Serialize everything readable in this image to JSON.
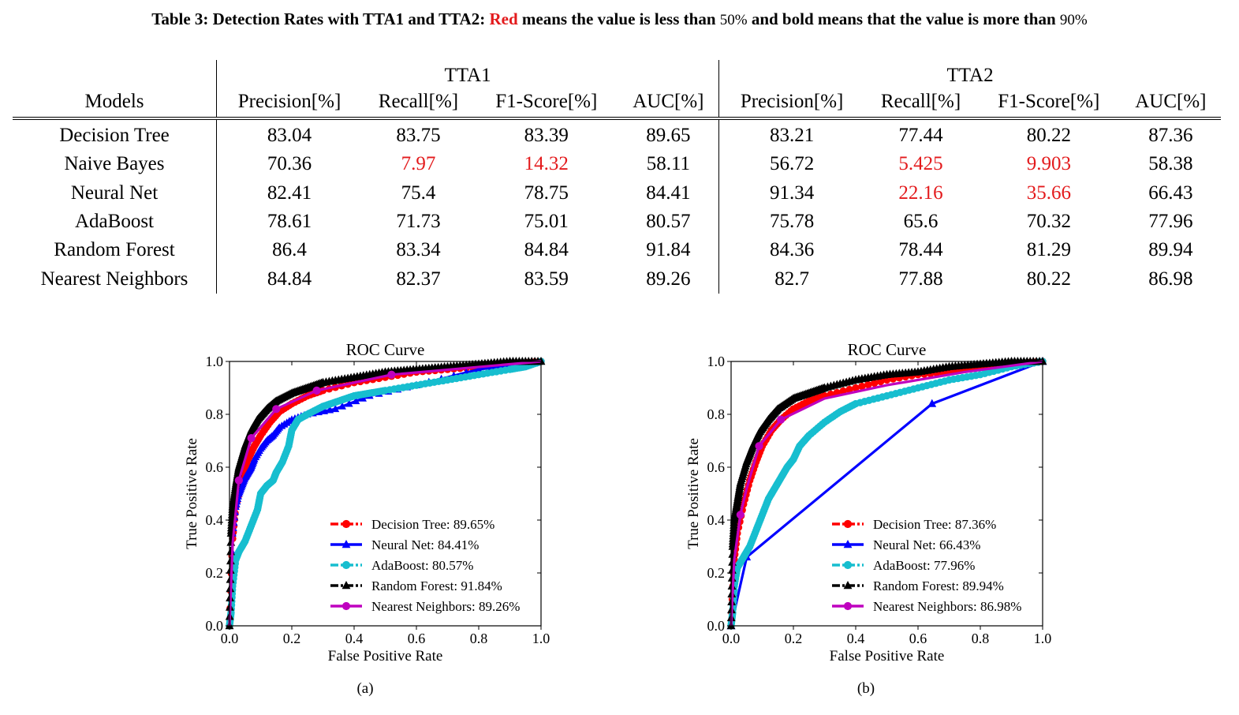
{
  "caption": {
    "lead": "Table 3: Detection Rates with TTA1 and TTA2:",
    "red_word": "Red",
    "middle": "means the value is less than",
    "threshold_low": "50%",
    "middle2": "and bold means that the value is more than",
    "threshold_high": "90%"
  },
  "table": {
    "models_header": "Models",
    "group1": "TTA1",
    "group2": "TTA2",
    "columns": [
      "Precision[%]",
      "Recall[%]",
      "F1-Score[%]",
      "AUC[%]",
      "Precision[%]",
      "Recall[%]",
      "F1-Score[%]",
      "AUC[%]"
    ],
    "rows": [
      {
        "model": "Decision Tree",
        "cells": [
          {
            "v": "83.04"
          },
          {
            "v": "83.75"
          },
          {
            "v": "83.39"
          },
          {
            "v": "89.65"
          },
          {
            "v": "83.21"
          },
          {
            "v": "77.44"
          },
          {
            "v": "80.22"
          },
          {
            "v": "87.36"
          }
        ]
      },
      {
        "model": "Naive Bayes",
        "cells": [
          {
            "v": "70.36"
          },
          {
            "v": "7.97",
            "s": "red"
          },
          {
            "v": "14.32",
            "s": "red"
          },
          {
            "v": "58.11"
          },
          {
            "v": "56.72"
          },
          {
            "v": "5.425",
            "s": "red"
          },
          {
            "v": "9.903",
            "s": "red"
          },
          {
            "v": "58.38"
          }
        ]
      },
      {
        "model": "Neural Net",
        "cells": [
          {
            "v": "82.41"
          },
          {
            "v": "75.4"
          },
          {
            "v": "78.75"
          },
          {
            "v": "84.41"
          },
          {
            "v": "91.34",
            "s": "bold"
          },
          {
            "v": "22.16",
            "s": "red"
          },
          {
            "v": "35.66",
            "s": "red"
          },
          {
            "v": "66.43"
          }
        ]
      },
      {
        "model": "AdaBoost",
        "cells": [
          {
            "v": "78.61"
          },
          {
            "v": "71.73"
          },
          {
            "v": "75.01"
          },
          {
            "v": "80.57"
          },
          {
            "v": "75.78"
          },
          {
            "v": "65.6"
          },
          {
            "v": "70.32"
          },
          {
            "v": "77.96"
          }
        ]
      },
      {
        "model": "Random Forest",
        "cells": [
          {
            "v": "86.4"
          },
          {
            "v": "83.34"
          },
          {
            "v": "84.84"
          },
          {
            "v": "91.84",
            "s": "bold"
          },
          {
            "v": "84.36"
          },
          {
            "v": "78.44"
          },
          {
            "v": "81.29"
          },
          {
            "v": "89.94"
          }
        ]
      },
      {
        "model": "Nearest Neighbors",
        "cells": [
          {
            "v": "84.84"
          },
          {
            "v": "82.37"
          },
          {
            "v": "83.59"
          },
          {
            "v": "89.26"
          },
          {
            "v": "82.7"
          },
          {
            "v": "77.88"
          },
          {
            "v": "80.22"
          },
          {
            "v": "86.98"
          }
        ]
      }
    ]
  },
  "colors": {
    "red_text": "#e31a1c",
    "decision_tree": "#ff0000",
    "neural_net": "#0000ff",
    "adaboost": "#17becf",
    "random_forest": "#000000",
    "nearest_neighbors": "#bf00bf"
  },
  "chart_data": [
    {
      "type": "line",
      "panel_label": "(a)",
      "title": "ROC Curve",
      "xlabel": "False Positive Rate",
      "ylabel": "True Positive Rate",
      "xlim": [
        0.0,
        1.0
      ],
      "ylim": [
        0.0,
        1.0
      ],
      "xticks": [
        "0.0",
        "0.2",
        "0.4",
        "0.6",
        "0.8",
        "1.0"
      ],
      "yticks": [
        "0.0",
        "0.2",
        "0.4",
        "0.6",
        "0.8",
        "1.0"
      ],
      "legend_position": "lower-right",
      "series": [
        {
          "name": "Decision Tree: 89.65%",
          "key": "decision_tree",
          "marker": "circle",
          "style": "dashdot",
          "x": [
            0,
            0.01,
            0.02,
            0.04,
            0.06,
            0.08,
            0.1,
            0.13,
            0.16,
            0.2,
            0.25,
            0.3,
            0.4,
            0.5,
            0.6,
            0.7,
            0.8,
            0.9,
            1.0
          ],
          "y": [
            0,
            0.33,
            0.45,
            0.55,
            0.63,
            0.68,
            0.72,
            0.77,
            0.81,
            0.84,
            0.87,
            0.89,
            0.92,
            0.94,
            0.96,
            0.97,
            0.98,
            0.99,
            1.0
          ]
        },
        {
          "name": "Neural Net: 84.41%",
          "key": "neural_net",
          "marker": "triangle",
          "style": "solid",
          "x": [
            0,
            0.01,
            0.02,
            0.03,
            0.04,
            0.05,
            0.06,
            0.07,
            0.08,
            0.1,
            0.12,
            0.14,
            0.16,
            0.2,
            0.25,
            0.34,
            0.45,
            0.6,
            0.8,
            1.0
          ],
          "y": [
            0,
            0.35,
            0.45,
            0.5,
            0.53,
            0.56,
            0.58,
            0.6,
            0.63,
            0.67,
            0.7,
            0.72,
            0.75,
            0.78,
            0.8,
            0.82,
            0.87,
            0.91,
            0.97,
            1.0
          ]
        },
        {
          "name": "AdaBoost: 80.57%",
          "key": "adaboost",
          "marker": "circle",
          "style": "dashdot",
          "x": [
            0,
            0.005,
            0.01,
            0.02,
            0.03,
            0.05,
            0.07,
            0.09,
            0.1,
            0.12,
            0.14,
            0.15,
            0.17,
            0.19,
            0.2,
            0.22,
            0.25,
            0.3,
            0.35,
            0.4,
            0.45,
            0.5,
            0.6,
            0.7,
            0.8,
            0.9,
            0.95,
            1.0
          ],
          "y": [
            0,
            0.05,
            0.15,
            0.25,
            0.28,
            0.32,
            0.38,
            0.44,
            0.5,
            0.53,
            0.55,
            0.58,
            0.62,
            0.68,
            0.74,
            0.78,
            0.8,
            0.83,
            0.85,
            0.87,
            0.88,
            0.89,
            0.91,
            0.93,
            0.95,
            0.97,
            0.98,
            1.0
          ]
        },
        {
          "name": "Random Forest: 91.84%",
          "key": "random_forest",
          "marker": "triangle",
          "style": "dashdot",
          "x": [
            0,
            0.005,
            0.01,
            0.02,
            0.03,
            0.05,
            0.07,
            0.09,
            0.12,
            0.15,
            0.2,
            0.25,
            0.3,
            0.4,
            0.5,
            0.6,
            0.7,
            0.8,
            0.9,
            1.0
          ],
          "y": [
            0,
            0.35,
            0.45,
            0.53,
            0.6,
            0.68,
            0.74,
            0.78,
            0.82,
            0.85,
            0.88,
            0.9,
            0.92,
            0.94,
            0.96,
            0.97,
            0.98,
            0.99,
            1.0,
            1.0
          ]
        },
        {
          "name": "Nearest Neighbors: 89.26%",
          "key": "nearest_neighbors",
          "marker": "circle",
          "style": "solid",
          "x": [
            0,
            0.01,
            0.03,
            0.07,
            0.15,
            0.28,
            0.52,
            1.0
          ],
          "y": [
            0,
            0.31,
            0.55,
            0.71,
            0.82,
            0.89,
            0.95,
            1.0
          ],
          "marker_idx": [
            2,
            3,
            4,
            5,
            6
          ]
        }
      ]
    },
    {
      "type": "line",
      "panel_label": "(b)",
      "title": "ROC Curve",
      "xlabel": "False Positive Rate",
      "ylabel": "True Positive Rate",
      "xlim": [
        0.0,
        1.0
      ],
      "ylim": [
        0.0,
        1.0
      ],
      "xticks": [
        "0.0",
        "0.2",
        "0.4",
        "0.6",
        "0.8",
        "1.0"
      ],
      "yticks": [
        "0.0",
        "0.2",
        "0.4",
        "0.6",
        "0.8",
        "1.0"
      ],
      "legend_position": "lower-right",
      "series": [
        {
          "name": "Decision Tree: 87.36%",
          "key": "decision_tree",
          "marker": "circle",
          "style": "dashdot",
          "x": [
            0,
            0.01,
            0.02,
            0.04,
            0.06,
            0.08,
            0.1,
            0.13,
            0.16,
            0.2,
            0.25,
            0.3,
            0.4,
            0.5,
            0.6,
            0.7,
            0.8,
            0.9,
            1.0
          ],
          "y": [
            0,
            0.25,
            0.35,
            0.46,
            0.55,
            0.62,
            0.68,
            0.74,
            0.78,
            0.82,
            0.85,
            0.87,
            0.9,
            0.93,
            0.95,
            0.96,
            0.98,
            0.99,
            1.0
          ]
        },
        {
          "name": "Neural Net: 66.43%",
          "key": "neural_net",
          "marker": "triangle",
          "style": "solid",
          "x": [
            0,
            0.05,
            0.645,
            1.0
          ],
          "y": [
            0,
            0.26,
            0.84,
            1.0
          ]
        },
        {
          "name": "AdaBoost: 77.96%",
          "key": "adaboost",
          "marker": "circle",
          "style": "dashdot",
          "x": [
            0,
            0.005,
            0.01,
            0.02,
            0.04,
            0.06,
            0.08,
            0.1,
            0.12,
            0.14,
            0.16,
            0.18,
            0.2,
            0.22,
            0.25,
            0.3,
            0.35,
            0.4,
            0.5,
            0.6,
            0.7,
            0.8,
            0.9,
            1.0
          ],
          "y": [
            0,
            0.05,
            0.15,
            0.22,
            0.26,
            0.3,
            0.36,
            0.42,
            0.48,
            0.52,
            0.56,
            0.6,
            0.63,
            0.68,
            0.72,
            0.77,
            0.81,
            0.84,
            0.87,
            0.9,
            0.93,
            0.95,
            0.98,
            1.0
          ]
        },
        {
          "name": "Random Forest: 89.94%",
          "key": "random_forest",
          "marker": "triangle",
          "style": "dashdot",
          "x": [
            0,
            0.005,
            0.01,
            0.02,
            0.03,
            0.05,
            0.07,
            0.09,
            0.12,
            0.15,
            0.2,
            0.25,
            0.3,
            0.4,
            0.5,
            0.6,
            0.7,
            0.8,
            0.9,
            1.0
          ],
          "y": [
            0,
            0.3,
            0.4,
            0.47,
            0.54,
            0.62,
            0.68,
            0.73,
            0.78,
            0.82,
            0.86,
            0.88,
            0.9,
            0.93,
            0.95,
            0.96,
            0.98,
            0.99,
            1.0,
            1.0
          ]
        },
        {
          "name": "Nearest Neighbors: 86.98%",
          "key": "nearest_neighbors",
          "marker": "circle",
          "style": "solid",
          "x": [
            0,
            0.01,
            0.03,
            0.05,
            0.09,
            0.16,
            0.3,
            0.5,
            0.75,
            1.0
          ],
          "y": [
            0,
            0.25,
            0.42,
            0.52,
            0.68,
            0.78,
            0.86,
            0.91,
            0.96,
            1.0
          ],
          "marker_idx": [
            2,
            4,
            5
          ]
        }
      ]
    }
  ]
}
